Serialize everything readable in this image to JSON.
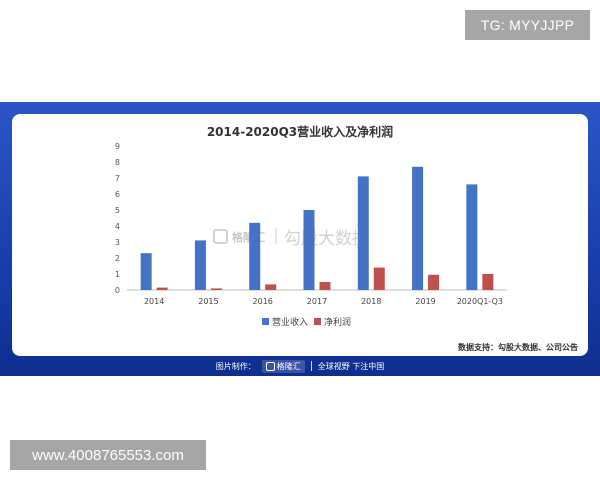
{
  "top_tag": "TG: MYYJJPP",
  "bottom_tag": "www.4008765553.com",
  "chart_data": {
    "type": "bar",
    "title": "2014-2020Q3营业收入及净利润",
    "categories": [
      "2014",
      "2015",
      "2016",
      "2017",
      "2018",
      "2019",
      "2020Q1-Q3"
    ],
    "series": [
      {
        "name": "营业收入",
        "values": [
          2.3,
          3.1,
          4.2,
          5.0,
          7.1,
          7.7,
          6.6
        ],
        "color": "#4472c4"
      },
      {
        "name": "净利润",
        "values": [
          0.15,
          0.1,
          0.35,
          0.5,
          1.4,
          0.95,
          1.0
        ],
        "color": "#c0504d"
      }
    ],
    "ylim": [
      0,
      9
    ],
    "yticks": [
      "0",
      "1",
      "2",
      "3",
      "4",
      "5",
      "6",
      "7",
      "8",
      "9"
    ],
    "grid": false,
    "legend": "bottom",
    "source": "数据支持：勾股大数据、公司公告",
    "watermark": {
      "brand": "格隆汇",
      "text": "勾股大数据"
    }
  },
  "footer": {
    "made_by": "图片制作：",
    "brand": "格隆汇",
    "slogan": "全球视野 下注中国"
  }
}
